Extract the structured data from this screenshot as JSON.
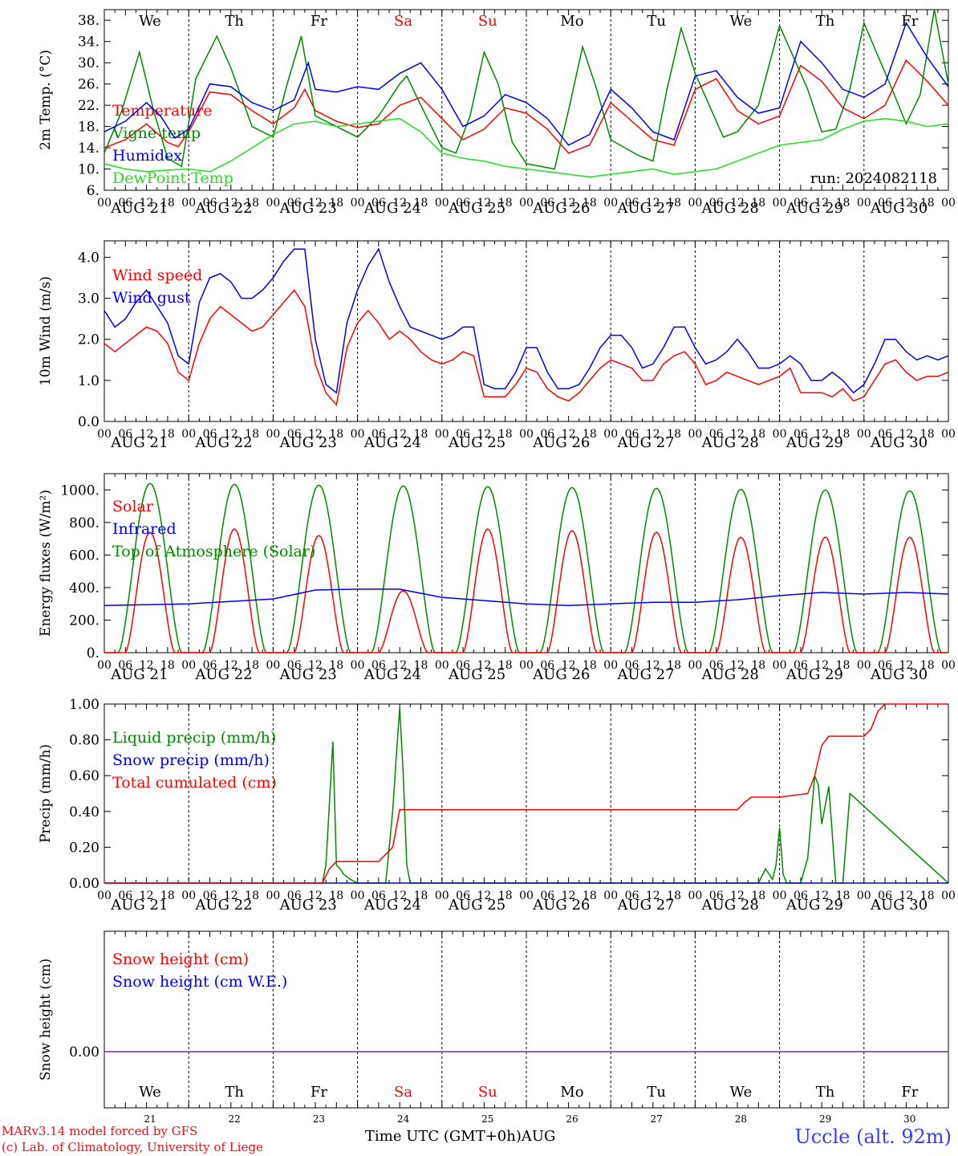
{
  "days": {
    "weekday": [
      "We",
      "Th",
      "Fr",
      "Sa",
      "Su",
      "Mo",
      "Tu",
      "We",
      "Th",
      "Fr"
    ],
    "dates": [
      "AUG 21",
      "AUG 22",
      "AUG 23",
      "AUG 24",
      "AUG 25",
      "AUG 26",
      "AUG 27",
      "AUG 28",
      "AUG 29",
      "AUG 30"
    ],
    "daynum": [
      "21",
      "22",
      "23",
      "24",
      "25",
      "26",
      "27",
      "28",
      "29",
      "30"
    ],
    "weekend_color": "#ff0000",
    "hour_ticks": [
      "00",
      "06",
      "12",
      "18"
    ],
    "final_tick": "00"
  },
  "colors": {
    "red": "#ff0000",
    "green": "#008800",
    "blue": "#0000ee",
    "lightgreen": "#22dd22",
    "purple": "#7a2c9a"
  },
  "chart_data": [
    {
      "type": "line",
      "ylabel": "2m Temp. (°C)",
      "ylim": [
        6,
        40
      ],
      "yticks": [
        "6.",
        "10.",
        "14.",
        "18.",
        "22.",
        "26.",
        "30.",
        "34.",
        "38."
      ],
      "annotation": "run: 2024082118",
      "x_unit": "hours since AUG 21 00 UTC",
      "series": [
        {
          "name": "Temperature",
          "color": "red",
          "x": [
            0,
            6,
            12,
            18,
            21,
            24,
            30,
            36,
            42,
            48,
            54,
            57,
            60,
            66,
            72,
            78,
            84,
            90,
            96,
            102,
            108,
            114,
            120,
            126,
            132,
            138,
            144,
            150,
            156,
            162,
            168,
            174,
            180,
            186,
            192,
            198,
            204,
            210,
            216,
            222,
            228,
            234,
            240
          ],
          "y": [
            14.0,
            15.5,
            18.5,
            15.0,
            14.2,
            17.0,
            24.5,
            24.0,
            21.0,
            18.5,
            21.5,
            25.0,
            21.0,
            19.0,
            17.8,
            18.5,
            22.0,
            23.5,
            19.5,
            15.5,
            17.5,
            21.5,
            20.5,
            17.5,
            13.0,
            14.5,
            22.5,
            19.0,
            15.5,
            14.5,
            25.0,
            27.0,
            21.0,
            18.5,
            20.0,
            29.5,
            26.5,
            21.5,
            19.5,
            22.0,
            30.5,
            26.5,
            22.0
          ]
        },
        {
          "name": "Vigne temp",
          "color": "green",
          "x": [
            0,
            5,
            10,
            14,
            18,
            22,
            26,
            32,
            36,
            42,
            48,
            52,
            56,
            60,
            66,
            72,
            78,
            84,
            86,
            90,
            96,
            100,
            104,
            108,
            112,
            116,
            120,
            128,
            132,
            136,
            140,
            144,
            152,
            156,
            160,
            164,
            168,
            176,
            180,
            186,
            192,
            200,
            204,
            208,
            212,
            216,
            224,
            228,
            232,
            236,
            240
          ],
          "y": [
            13.0,
            21.0,
            32.0,
            21.0,
            12.0,
            10.5,
            27.0,
            35.0,
            29.0,
            18.0,
            16.0,
            26.0,
            35.0,
            20.0,
            18.0,
            16.0,
            20.0,
            26.0,
            27.5,
            22.0,
            14.0,
            13.0,
            20.0,
            32.0,
            26.0,
            15.0,
            11.0,
            10.0,
            21.0,
            33.0,
            25.0,
            15.5,
            12.5,
            11.5,
            25.0,
            36.5,
            28.0,
            16.0,
            17.0,
            22.0,
            37.0,
            25.0,
            17.0,
            17.5,
            25.0,
            37.5,
            25.0,
            18.5,
            24.0,
            40.0,
            26.0
          ]
        },
        {
          "name": "Humidex",
          "color": "blue",
          "x": [
            0,
            6,
            12,
            16,
            20,
            24,
            30,
            36,
            42,
            48,
            54,
            58,
            60,
            66,
            72,
            78,
            84,
            90,
            96,
            102,
            108,
            114,
            120,
            126,
            132,
            138,
            144,
            150,
            156,
            162,
            168,
            174,
            180,
            186,
            192,
            198,
            204,
            210,
            216,
            222,
            228,
            234,
            240
          ],
          "y": [
            17.0,
            19.0,
            22.5,
            20.0,
            15.8,
            17.5,
            26.0,
            25.5,
            22.5,
            21.0,
            23.0,
            30.0,
            25.0,
            24.5,
            25.5,
            25.0,
            28.0,
            30.0,
            25.0,
            18.0,
            20.0,
            24.0,
            22.5,
            19.5,
            14.5,
            16.5,
            25.0,
            21.5,
            17.0,
            15.5,
            27.5,
            28.5,
            23.5,
            20.5,
            21.5,
            34.0,
            30.0,
            25.0,
            23.5,
            26.0,
            37.5,
            31.0,
            25.5
          ]
        },
        {
          "name": "DewPoint Temp",
          "color": "lightgreen",
          "x": [
            0,
            6,
            12,
            18,
            24,
            30,
            36,
            42,
            48,
            54,
            60,
            66,
            72,
            78,
            84,
            90,
            96,
            102,
            108,
            114,
            120,
            126,
            132,
            138,
            144,
            150,
            156,
            162,
            168,
            174,
            180,
            186,
            192,
            198,
            204,
            210,
            216,
            222,
            228,
            234,
            240
          ],
          "y": [
            11.0,
            10.0,
            9.5,
            9.8,
            10.0,
            9.5,
            11.5,
            14.0,
            16.5,
            18.5,
            19.0,
            18.0,
            18.5,
            19.0,
            19.5,
            17.0,
            13.0,
            12.0,
            11.5,
            10.5,
            10.0,
            9.5,
            9.0,
            8.5,
            9.0,
            9.5,
            10.0,
            9.0,
            9.5,
            10.0,
            11.5,
            13.0,
            14.5,
            15.0,
            15.5,
            17.5,
            19.0,
            19.5,
            19.0,
            18.0,
            18.5
          ]
        }
      ]
    },
    {
      "type": "line",
      "ylabel": "10m Wind (m/s)",
      "ylim": [
        0,
        4.4
      ],
      "yticks": [
        "0.0",
        "1.0",
        "2.0",
        "3.0",
        "4.0"
      ],
      "x_unit": "hours since AUG 21 00 UTC",
      "series": [
        {
          "name": "Wind speed",
          "color": "red",
          "x": [
            0,
            3,
            6,
            9,
            12,
            15,
            18,
            21,
            24,
            27,
            30,
            33,
            36,
            39,
            42,
            45,
            48,
            51,
            54,
            57,
            60,
            63,
            66,
            69,
            72,
            75,
            78,
            81,
            84,
            87,
            90,
            93,
            96,
            99,
            102,
            105,
            108,
            111,
            114,
            117,
            120,
            123,
            126,
            129,
            132,
            135,
            138,
            141,
            144,
            147,
            150,
            153,
            156,
            159,
            162,
            165,
            168,
            171,
            174,
            177,
            180,
            183,
            186,
            189,
            192,
            195,
            198,
            201,
            204,
            207,
            210,
            213,
            216,
            219,
            222,
            225,
            228,
            231,
            234,
            237,
            240
          ],
          "y": [
            1.9,
            1.7,
            1.9,
            2.1,
            2.3,
            2.2,
            1.9,
            1.2,
            1.0,
            1.9,
            2.5,
            2.8,
            2.6,
            2.4,
            2.2,
            2.3,
            2.6,
            2.9,
            3.2,
            2.8,
            1.4,
            0.7,
            0.4,
            1.8,
            2.4,
            2.7,
            2.4,
            2.0,
            2.2,
            2.0,
            1.7,
            1.5,
            1.4,
            1.5,
            1.7,
            1.6,
            0.6,
            0.6,
            0.6,
            0.9,
            1.3,
            1.2,
            0.8,
            0.6,
            0.5,
            0.7,
            1.0,
            1.3,
            1.5,
            1.4,
            1.3,
            1.0,
            1.0,
            1.4,
            1.6,
            1.7,
            1.4,
            0.9,
            1.0,
            1.2,
            1.1,
            1.0,
            0.9,
            1.0,
            1.1,
            1.3,
            0.7,
            0.7,
            0.7,
            0.6,
            0.8,
            0.5,
            0.6,
            1.0,
            1.4,
            1.5,
            1.2,
            1.0,
            1.1,
            1.1,
            1.2
          ]
        },
        {
          "name": "Wind gust",
          "color": "blue",
          "x": [
            0,
            3,
            6,
            9,
            12,
            15,
            18,
            21,
            24,
            27,
            30,
            33,
            36,
            39,
            42,
            45,
            48,
            51,
            54,
            57,
            60,
            63,
            66,
            69,
            72,
            75,
            78,
            81,
            84,
            87,
            90,
            93,
            96,
            99,
            102,
            105,
            108,
            111,
            114,
            117,
            120,
            123,
            126,
            129,
            132,
            135,
            138,
            141,
            144,
            147,
            150,
            153,
            156,
            159,
            162,
            165,
            168,
            171,
            174,
            177,
            180,
            183,
            186,
            189,
            192,
            195,
            198,
            201,
            204,
            207,
            210,
            213,
            216,
            219,
            222,
            225,
            228,
            231,
            234,
            237,
            240
          ],
          "y": [
            2.7,
            2.3,
            2.5,
            2.9,
            3.2,
            2.8,
            2.4,
            1.6,
            1.4,
            2.9,
            3.5,
            3.6,
            3.4,
            3.0,
            3.0,
            3.2,
            3.5,
            3.9,
            4.2,
            4.2,
            2.0,
            0.9,
            0.7,
            2.4,
            3.2,
            3.8,
            4.2,
            3.4,
            2.8,
            2.3,
            2.2,
            2.1,
            2.0,
            2.1,
            2.3,
            2.3,
            0.9,
            0.8,
            0.8,
            1.2,
            1.8,
            1.8,
            1.2,
            0.8,
            0.8,
            0.9,
            1.3,
            1.8,
            2.1,
            2.1,
            1.8,
            1.3,
            1.4,
            1.8,
            2.3,
            2.3,
            1.8,
            1.4,
            1.5,
            1.7,
            2.0,
            1.7,
            1.3,
            1.3,
            1.4,
            1.6,
            1.4,
            1.0,
            1.0,
            1.2,
            1.0,
            0.7,
            0.9,
            1.4,
            2.0,
            2.0,
            1.7,
            1.5,
            1.6,
            1.5,
            1.6
          ]
        }
      ]
    },
    {
      "type": "line",
      "ylabel": "Energy fluxes (W/m²)",
      "ylim": [
        0,
        1100
      ],
      "yticks": [
        "0.",
        "200.",
        "400.",
        "600.",
        "800.",
        "1000."
      ],
      "x_unit": "hours since AUG 21 00 UTC",
      "series": [
        {
          "name": "Solar",
          "color": "red",
          "peaks": [
            740,
            760,
            720,
            380,
            760,
            750,
            740,
            710,
            710,
            710
          ]
        },
        {
          "name": "Infrared",
          "color": "blue",
          "x": [
            0,
            24,
            48,
            60,
            72,
            84,
            96,
            120,
            132,
            144,
            156,
            168,
            180,
            192,
            204,
            216,
            228,
            240
          ],
          "y": [
            290,
            300,
            330,
            385,
            390,
            390,
            340,
            300,
            290,
            300,
            310,
            310,
            325,
            350,
            370,
            360,
            370,
            360
          ]
        },
        {
          "name": "Top of Atmosphere (Solar)",
          "color": "green",
          "peaks": [
            1040,
            1035,
            1030,
            1025,
            1020,
            1015,
            1010,
            1005,
            1000,
            995
          ]
        }
      ]
    },
    {
      "type": "line",
      "ylabel": "Precip (mm/h)",
      "ylim": [
        0,
        1.0
      ],
      "yticks": [
        "0.00",
        "0.20",
        "0.40",
        "0.60",
        "0.80",
        "1.00"
      ],
      "x_unit": "hours since AUG 21 00 UTC",
      "series": [
        {
          "name": "Liquid precip (mm/h)",
          "color": "green",
          "x": [
            0,
            62,
            63,
            65,
            66,
            67,
            68,
            70,
            72,
            80,
            81,
            82,
            83,
            84,
            85,
            86,
            87,
            88,
            89,
            90,
            91,
            92,
            186,
            188,
            190,
            191,
            192,
            193,
            194,
            198,
            200,
            202,
            203,
            204,
            206,
            208,
            209,
            210,
            212,
            240
          ],
          "y": [
            0,
            0,
            0.1,
            0.79,
            0.1,
            0.08,
            0.05,
            0.02,
            0,
            0,
            0.2,
            0.4,
            0.7,
            0.98,
            0.6,
            0.1,
            0,
            0,
            0,
            0,
            0,
            0,
            0,
            0.08,
            0.02,
            0.1,
            0.31,
            0.05,
            0,
            0,
            0.14,
            0.6,
            0.55,
            0.33,
            0.54,
            0,
            0,
            0,
            0.5,
            0
          ]
        },
        {
          "name": "Snow precip (mm/h)",
          "color": "blue",
          "x": [
            0,
            240
          ],
          "y": [
            0,
            0
          ]
        },
        {
          "name": "Total cumulated (cm)",
          "color": "red",
          "x": [
            0,
            62,
            64,
            66,
            78,
            82,
            84,
            86,
            180,
            182,
            184,
            192,
            200,
            202,
            204,
            206,
            216,
            218,
            220,
            222,
            240
          ],
          "y": [
            0,
            0,
            0.08,
            0.12,
            0.12,
            0.2,
            0.41,
            0.41,
            0.41,
            0.45,
            0.48,
            0.48,
            0.5,
            0.6,
            0.77,
            0.82,
            0.82,
            0.86,
            0.96,
            1.0,
            1.0
          ]
        }
      ]
    },
    {
      "type": "line",
      "ylabel": "Snow height (cm)",
      "yticks": [
        "0.00"
      ],
      "x_unit": "hours since AUG 21 00 UTC",
      "series": [
        {
          "name": "Snow height (cm)",
          "color": "red",
          "x": [
            0,
            240
          ],
          "y": [
            0,
            0
          ]
        },
        {
          "name": "Snow height (cm W.E.)",
          "color": "blue",
          "x": [
            0,
            240
          ],
          "y": [
            0,
            0
          ]
        }
      ]
    }
  ],
  "footer": {
    "credit_line1": "MARv3.14 model forced by GFS",
    "credit_line2": "(c) Lab. of Climatology, University of Liege",
    "time_label": "Time UTC (GMT+0h)AUG",
    "station": "Uccle (alt. 92m)"
  }
}
